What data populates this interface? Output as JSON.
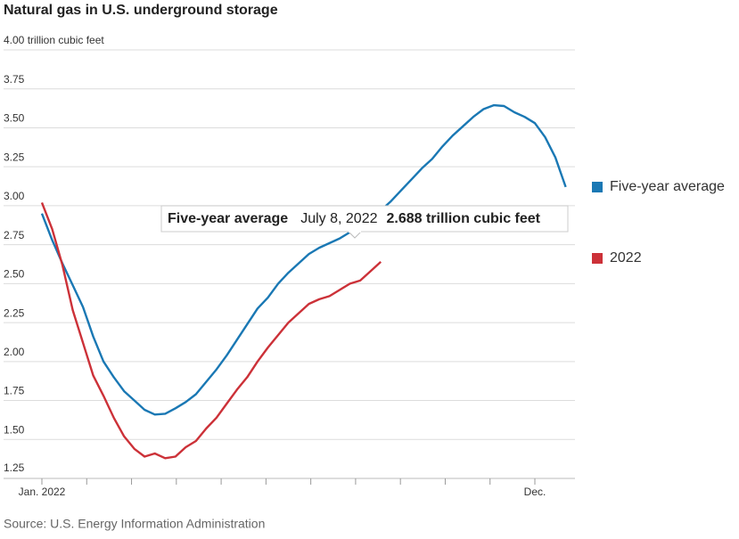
{
  "chart_data": {
    "type": "line",
    "title": "Natural gas in U.S. underground storage",
    "source": "Source: U.S. Energy Information Administration",
    "categories": [
      "Jan. 2022",
      null,
      null,
      null,
      null,
      null,
      null,
      null,
      null,
      null,
      null,
      null,
      null,
      null,
      null,
      null,
      null,
      null,
      null,
      null,
      null,
      null,
      null,
      null,
      null,
      null,
      null,
      null,
      null,
      null,
      null,
      null,
      null,
      null,
      null,
      null,
      null,
      null,
      null,
      null,
      null,
      null,
      null,
      null,
      null,
      null,
      null,
      null,
      "Dec.",
      null,
      null,
      null
    ],
    "series": [
      {
        "name": "Five-year average",
        "color": "#1a78b4",
        "values": [
          2.95,
          2.78,
          2.63,
          2.49,
          2.35,
          2.16,
          2.0,
          1.9,
          1.81,
          1.75,
          1.69,
          1.66,
          1.665,
          1.7,
          1.74,
          1.79,
          1.87,
          1.95,
          2.04,
          2.14,
          2.24,
          2.34,
          2.41,
          2.5,
          2.57,
          2.63,
          2.69,
          2.73,
          2.76,
          2.79,
          2.83,
          2.88,
          2.93,
          2.97,
          3.03,
          3.1,
          3.17,
          3.24,
          3.3,
          3.38,
          3.45,
          3.51,
          3.57,
          3.62,
          3.645,
          3.64,
          3.6,
          3.57,
          3.53,
          3.44,
          3.31,
          3.12
        ]
      },
      {
        "name": "2022",
        "color": "#cc3138",
        "values": [
          3.02,
          2.85,
          2.62,
          2.33,
          2.12,
          1.91,
          1.78,
          1.64,
          1.52,
          1.44,
          1.39,
          1.41,
          1.38,
          1.39,
          1.45,
          1.49,
          1.57,
          1.64,
          1.73,
          1.82,
          1.9,
          2.0,
          2.09,
          2.17,
          2.25,
          2.31,
          2.37,
          2.4,
          2.42,
          2.46,
          2.5,
          2.52,
          2.58,
          2.64,
          null,
          null,
          null,
          null,
          null,
          null,
          null,
          null,
          null,
          null,
          null,
          null,
          null,
          null,
          null,
          null,
          null,
          null
        ]
      }
    ],
    "ylim": [
      1.25,
      4.0
    ],
    "yticks": [
      {
        "value": 4.0,
        "label": "4.00 trillion cubic feet"
      },
      3.75,
      {
        "value": 3.5,
        "label": "3.50"
      },
      3.25,
      {
        "value": 3.0,
        "label": "3.00"
      },
      2.75,
      {
        "value": 2.5,
        "label": "2.50"
      },
      2.25,
      {
        "value": 2.0,
        "label": "2.00"
      },
      1.75,
      {
        "value": 1.5,
        "label": "1.50"
      },
      1.25
    ],
    "grid": true,
    "legend": "right",
    "tooltip": {
      "series": "Five-year average",
      "date": "July 8, 2022",
      "value": "2.688 trillion cubic feet"
    }
  }
}
